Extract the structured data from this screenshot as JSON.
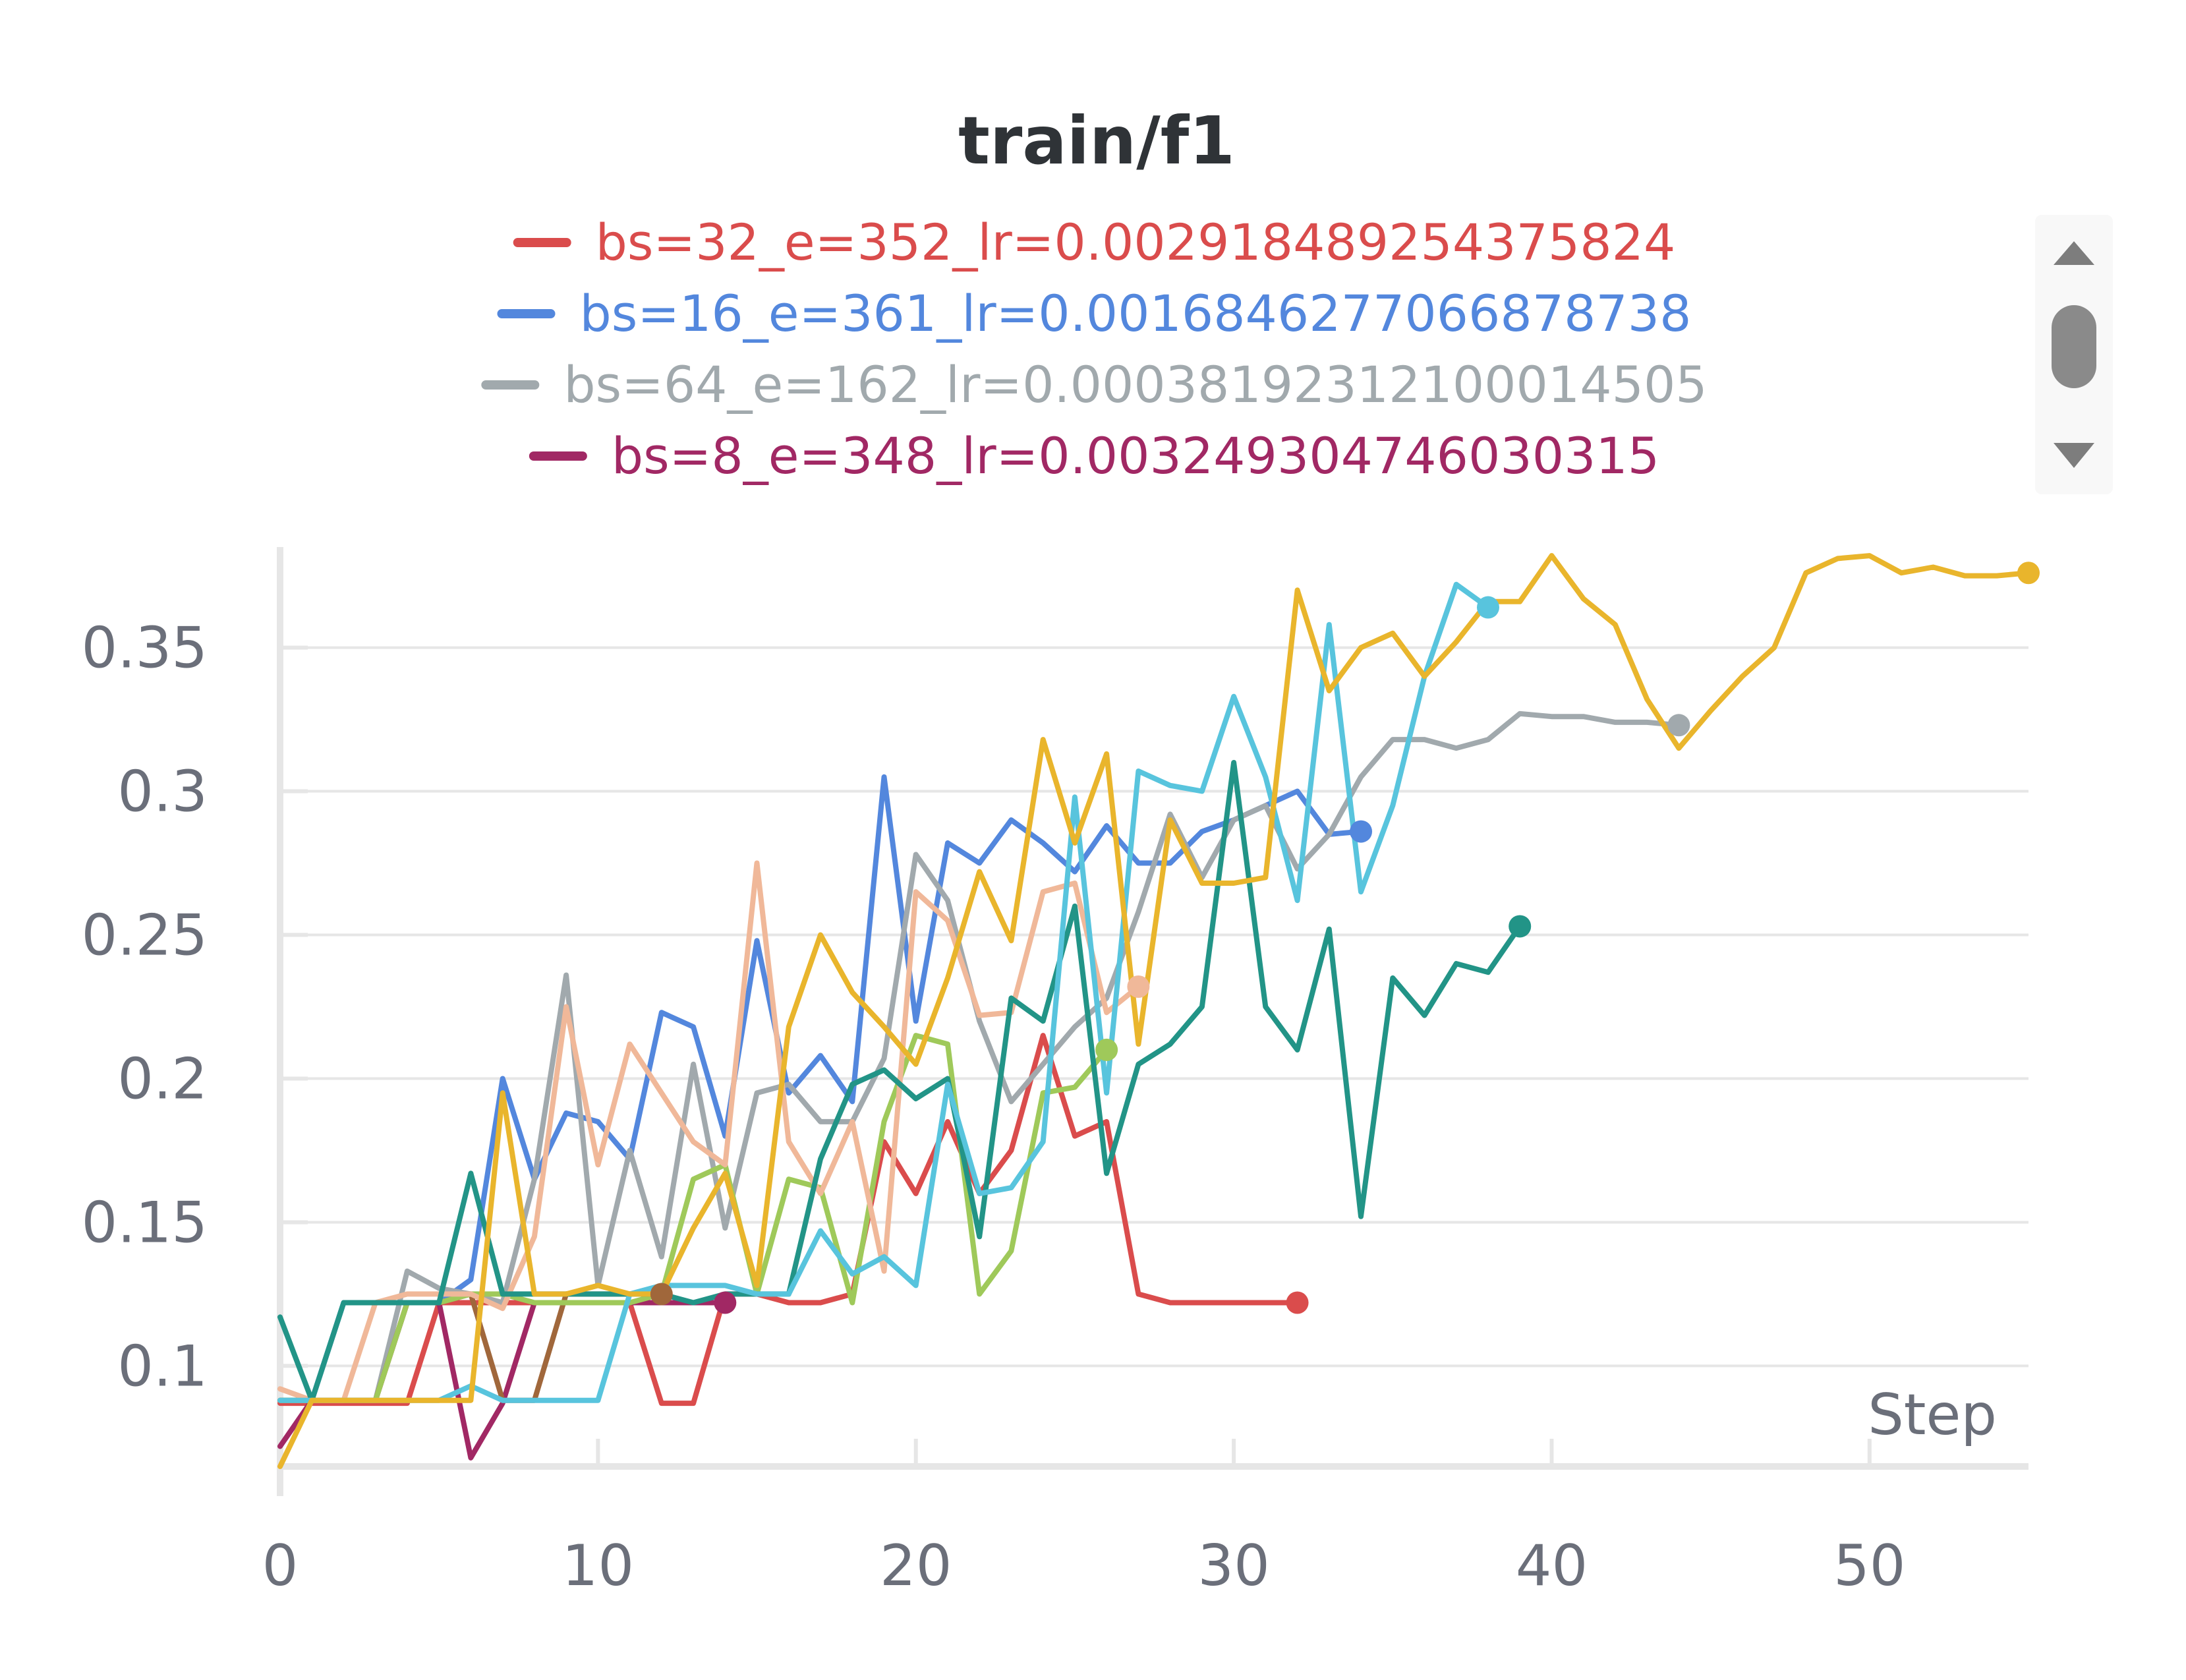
{
  "chart_data": {
    "type": "line",
    "title": "train/f1",
    "xlabel": "Step",
    "ylabel": "",
    "xlim": [
      0,
      55
    ],
    "ylim": [
      0.065,
      0.385
    ],
    "xticks": [
      0,
      10,
      20,
      30,
      40,
      50
    ],
    "yticks": [
      0.1,
      0.15,
      0.2,
      0.25,
      0.3,
      0.35
    ],
    "ytick_labels": [
      "0.1",
      "0.15",
      "0.2",
      "0.25",
      "0.3",
      "0.35"
    ],
    "grid": true,
    "legend": "top",
    "series": [
      {
        "name": "bs=32_e=352_lr=0.002918489254375824",
        "color": "#da4c4c",
        "x": [
          0,
          1,
          2,
          3,
          4,
          5,
          6,
          7,
          8,
          9,
          10,
          11,
          12,
          13,
          14,
          15,
          16,
          17,
          18,
          19,
          20,
          21,
          22,
          23,
          24,
          25,
          26,
          27,
          28,
          29,
          30,
          31,
          32
        ],
        "values": [
          0.087,
          0.087,
          0.087,
          0.087,
          0.087,
          0.122,
          0.122,
          0.122,
          0.122,
          0.122,
          0.122,
          0.122,
          0.087,
          0.087,
          0.125,
          0.125,
          0.122,
          0.122,
          0.125,
          0.178,
          0.16,
          0.185,
          0.16,
          0.175,
          0.215,
          0.18,
          0.185,
          0.125,
          0.122,
          0.122,
          0.122,
          0.122,
          0.122
        ]
      },
      {
        "name": "bs=16_e=361_lr=0.0016846277066878738",
        "color": "#5387dd",
        "x": [
          0,
          1,
          2,
          3,
          4,
          5,
          6,
          7,
          8,
          9,
          10,
          11,
          12,
          13,
          14,
          15,
          16,
          17,
          18,
          19,
          20,
          21,
          22,
          23,
          24,
          25,
          26,
          27,
          28,
          29,
          30,
          31,
          32,
          33,
          34
        ],
        "values": [
          0.088,
          0.088,
          0.122,
          0.122,
          0.122,
          0.122,
          0.13,
          0.2,
          0.165,
          0.188,
          0.185,
          0.172,
          0.223,
          0.218,
          0.18,
          0.248,
          0.195,
          0.208,
          0.192,
          0.305,
          0.22,
          0.282,
          0.275,
          0.29,
          0.282,
          0.272,
          0.288,
          0.275,
          0.275,
          0.286,
          0.29,
          0.295,
          0.3,
          0.285,
          0.286
        ]
      },
      {
        "name": "bs=64_e=162_lr=0.00038192312100014505",
        "color": "#a1a9ad",
        "x": [
          0,
          1,
          2,
          3,
          4,
          5,
          6,
          7,
          8,
          9,
          10,
          11,
          12,
          13,
          14,
          15,
          16,
          17,
          18,
          19,
          20,
          21,
          22,
          23,
          24,
          25,
          26,
          27,
          28,
          29,
          30,
          31,
          32,
          33,
          34,
          35,
          36,
          37,
          38,
          39,
          40,
          41,
          42,
          43,
          44
        ],
        "values": [
          0.088,
          0.088,
          0.088,
          0.088,
          0.133,
          0.127,
          0.125,
          0.122,
          0.165,
          0.236,
          0.128,
          0.175,
          0.138,
          0.205,
          0.148,
          0.195,
          0.198,
          0.185,
          0.185,
          0.207,
          0.278,
          0.262,
          0.22,
          0.192,
          0.205,
          0.218,
          0.228,
          0.258,
          0.292,
          0.27,
          0.29,
          0.295,
          0.273,
          0.285,
          0.305,
          0.318,
          0.318,
          0.315,
          0.318,
          0.327,
          0.326,
          0.326,
          0.324,
          0.324,
          0.323
        ]
      },
      {
        "name": "bs=8_e=348_lr=0.003249304746030315",
        "color": "#a12864",
        "x": [
          0,
          1,
          2,
          3,
          4,
          5,
          6,
          7,
          8,
          9,
          10,
          11,
          12,
          13,
          14
        ],
        "values": [
          0.072,
          0.088,
          0.088,
          0.088,
          0.122,
          0.122,
          0.068,
          0.087,
          0.122,
          0.122,
          0.122,
          0.122,
          0.122,
          0.122,
          0.122
        ]
      },
      {
        "name": "",
        "color": "#a0673b",
        "x": [
          0,
          1,
          2,
          3,
          4,
          5,
          6,
          7,
          8,
          9,
          10,
          11,
          12
        ],
        "values": [
          0.088,
          0.088,
          0.088,
          0.088,
          0.122,
          0.122,
          0.125,
          0.088,
          0.088,
          0.125,
          0.125,
          0.125,
          0.125
        ]
      },
      {
        "name": "",
        "color": "#9fc95a",
        "x": [
          0,
          1,
          2,
          3,
          4,
          5,
          6,
          7,
          8,
          9,
          10,
          11,
          12,
          13,
          14,
          15,
          16,
          17,
          18,
          19,
          20,
          21,
          22,
          23,
          24,
          25,
          26
        ],
        "values": [
          0.088,
          0.088,
          0.088,
          0.088,
          0.122,
          0.122,
          0.125,
          0.125,
          0.122,
          0.122,
          0.122,
          0.122,
          0.125,
          0.165,
          0.17,
          0.125,
          0.165,
          0.162,
          0.122,
          0.185,
          0.215,
          0.212,
          0.125,
          0.14,
          0.195,
          0.197,
          0.21
        ]
      },
      {
        "name": "",
        "color": "#f0b899",
        "x": [
          0,
          1,
          2,
          3,
          4,
          5,
          6,
          7,
          8,
          9,
          10,
          11,
          12,
          13,
          14,
          15,
          16,
          17,
          18,
          19,
          20,
          21,
          22,
          23,
          24,
          25,
          26,
          27
        ],
        "values": [
          0.092,
          0.088,
          0.088,
          0.122,
          0.125,
          0.125,
          0.125,
          0.12,
          0.145,
          0.225,
          0.17,
          0.212,
          0.195,
          0.178,
          0.17,
          0.275,
          0.178,
          0.16,
          0.185,
          0.133,
          0.265,
          0.255,
          0.222,
          0.223,
          0.265,
          0.268,
          0.223,
          0.232
        ]
      },
      {
        "name": "",
        "color": "#229487",
        "x": [
          0,
          1,
          2,
          3,
          4,
          5,
          6,
          7,
          8,
          9,
          10,
          11,
          12,
          13,
          14,
          15,
          16,
          17,
          18,
          19,
          20,
          21,
          22,
          23,
          24,
          25,
          26,
          27,
          28,
          29,
          30,
          31,
          32,
          33,
          34,
          35,
          36,
          37,
          38,
          39
        ],
        "values": [
          0.117,
          0.088,
          0.122,
          0.122,
          0.122,
          0.122,
          0.167,
          0.125,
          0.125,
          0.125,
          0.125,
          0.125,
          0.125,
          0.122,
          0.125,
          0.125,
          0.125,
          0.172,
          0.198,
          0.203,
          0.193,
          0.2,
          0.145,
          0.228,
          0.22,
          0.26,
          0.167,
          0.205,
          0.212,
          0.225,
          0.31,
          0.225,
          0.21,
          0.252,
          0.152,
          0.235,
          0.222,
          0.24,
          0.237,
          0.253
        ]
      },
      {
        "name": "",
        "color": "#58c4dd",
        "x": [
          0,
          1,
          2,
          3,
          4,
          5,
          6,
          7,
          8,
          9,
          10,
          11,
          12,
          13,
          14,
          15,
          16,
          17,
          18,
          19,
          20,
          21,
          22,
          23,
          24,
          25,
          26,
          27,
          28,
          29,
          30,
          31,
          32,
          33,
          34,
          35,
          36,
          37,
          38
        ],
        "values": [
          0.088,
          0.088,
          0.088,
          0.088,
          0.088,
          0.088,
          0.093,
          0.088,
          0.088,
          0.088,
          0.088,
          0.125,
          0.128,
          0.128,
          0.128,
          0.125,
          0.125,
          0.147,
          0.132,
          0.138,
          0.128,
          0.198,
          0.16,
          0.162,
          0.178,
          0.298,
          0.195,
          0.307,
          0.302,
          0.3,
          0.333,
          0.305,
          0.262,
          0.358,
          0.265,
          0.295,
          0.34,
          0.372,
          0.364
        ]
      },
      {
        "name": "",
        "color": "#e9b52c",
        "x": [
          0,
          1,
          2,
          3,
          4,
          5,
          6,
          7,
          8,
          9,
          10,
          11,
          12,
          13,
          14,
          15,
          16,
          17,
          18,
          19,
          20,
          21,
          22,
          23,
          24,
          25,
          26,
          27,
          28,
          29,
          30,
          31,
          32,
          33,
          34,
          35,
          36,
          37,
          38,
          39,
          40,
          41,
          42,
          43,
          44,
          45,
          46,
          47,
          48,
          49,
          50,
          51,
          52,
          53,
          54,
          55
        ],
        "values": [
          0.065,
          0.088,
          0.088,
          0.088,
          0.088,
          0.088,
          0.088,
          0.195,
          0.125,
          0.125,
          0.128,
          0.125,
          0.125,
          0.148,
          0.167,
          0.128,
          0.218,
          0.25,
          0.23,
          0.218,
          0.205,
          0.235,
          0.272,
          0.248,
          0.318,
          0.282,
          0.313,
          0.212,
          0.29,
          0.268,
          0.268,
          0.27,
          0.37,
          0.335,
          0.35,
          0.355,
          0.34,
          0.352,
          0.366,
          0.366,
          0.382,
          0.367,
          0.358,
          0.332,
          0.315,
          0.328,
          0.34,
          0.35,
          0.376,
          0.381,
          0.382,
          0.376,
          0.378,
          0.375,
          0.375,
          0.376
        ]
      }
    ]
  },
  "ui": {
    "scroll_up_icon": "triangle-up-icon",
    "scroll_down_icon": "triangle-down-icon"
  }
}
